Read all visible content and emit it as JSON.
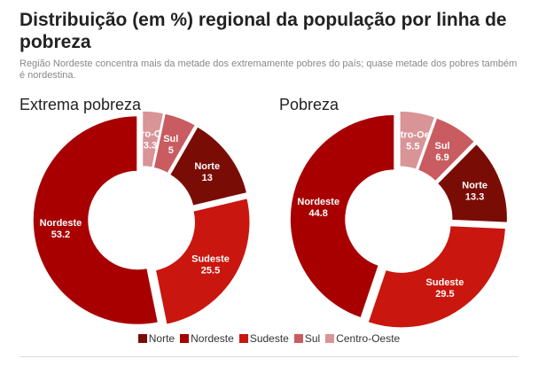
{
  "title": "Distribuição (em %) regional da população por linha de pobreza",
  "subtitle": "Região Nordeste concentra mais da metade dos extremamente pobres do país; quase metade dos pobres também é nordestina.",
  "colors": {
    "Norte": "#7a0c06",
    "Nordeste": "#a80000",
    "Sudeste": "#c9160e",
    "Sul": "#c95c60",
    "Centro-Oeste": "#d99497"
  },
  "legend": [
    "Norte",
    "Nordeste",
    "Sudeste",
    "Sul",
    "Centro-Oeste"
  ],
  "chart_data": [
    {
      "type": "pie",
      "title": "Extrema pobreza",
      "order": [
        "Centro-Oeste",
        "Sul",
        "Norte",
        "Sudeste",
        "Nordeste"
      ],
      "slices": [
        {
          "name": "Norte",
          "value": 13
        },
        {
          "name": "Nordeste",
          "value": 53.2
        },
        {
          "name": "Sudeste",
          "value": 25.5
        },
        {
          "name": "Sul",
          "value": 5
        },
        {
          "name": "Centro-Oeste",
          "value": 3.3
        }
      ]
    },
    {
      "type": "pie",
      "title": "Pobreza",
      "order": [
        "Centro-Oeste",
        "Sul",
        "Norte",
        "Sudeste",
        "Nordeste"
      ],
      "slices": [
        {
          "name": "Norte",
          "value": 13.3
        },
        {
          "name": "Nordeste",
          "value": 44.8
        },
        {
          "name": "Sudeste",
          "value": 29.5
        },
        {
          "name": "Sul",
          "value": 6.9
        },
        {
          "name": "Centro-Oeste",
          "value": 5.5
        }
      ]
    }
  ]
}
